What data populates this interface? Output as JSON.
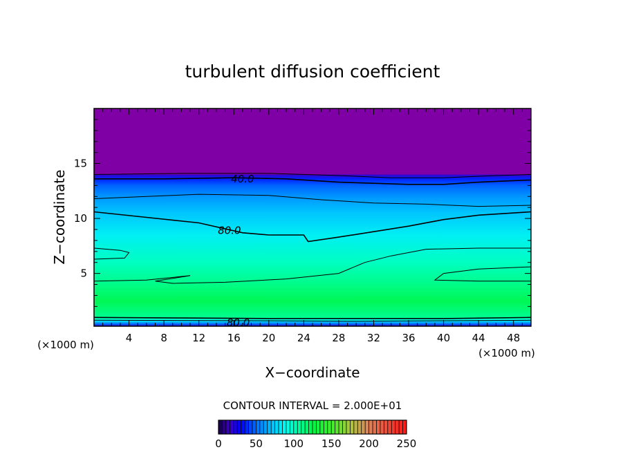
{
  "chart_data": {
    "type": "contour",
    "title": "turbulent diffusion coefficient",
    "xlabel": "X−coordinate",
    "ylabel": "Z−coordinate",
    "x_unit_left": "(×1000 m)",
    "x_unit_right": "(×1000 m)",
    "xlim": [
      0,
      50
    ],
    "ylim": [
      0.2,
      20
    ],
    "x_ticks": [
      4,
      8,
      12,
      16,
      20,
      24,
      28,
      32,
      36,
      40,
      44,
      48
    ],
    "y_ticks": [
      5,
      10,
      15
    ],
    "contour_interval_text": "CONTOUR INTERVAL = 2.000E+01",
    "contour_interval": 20,
    "contour_labels": [
      {
        "text": "40.0",
        "x": 17.0,
        "y": 13.6
      },
      {
        "text": "80.0",
        "x": 15.5,
        "y": 8.9
      },
      {
        "text": "80.0",
        "x": 16.5,
        "y": 0.5
      }
    ],
    "colorbar": {
      "min": 0,
      "max": 250,
      "tick_values": [
        0,
        50,
        100,
        150,
        200,
        250
      ],
      "tick_labels": [
        "0",
        "50",
        "100",
        "150",
        "200",
        "250"
      ]
    },
    "fields": {
      "top_layer": {
        "z_from": 14,
        "z_to": 20,
        "value": "<0",
        "color": "#7f00a4"
      },
      "near_surface_value": 120
    },
    "contours": [
      {
        "level": 40,
        "points": [
          [
            0,
            13.6
          ],
          [
            8,
            13.6
          ],
          [
            16,
            13.7
          ],
          [
            22,
            13.6
          ],
          [
            28,
            13.3
          ],
          [
            32,
            13.2
          ],
          [
            36,
            13.1
          ],
          [
            40,
            13.1
          ],
          [
            44,
            13.3
          ],
          [
            50,
            13.5
          ]
        ]
      },
      {
        "level": 20,
        "points": [
          [
            0,
            14.0
          ],
          [
            10,
            14.1
          ],
          [
            20,
            14.1
          ],
          [
            28,
            13.9
          ],
          [
            34,
            13.7
          ],
          [
            40,
            13.7
          ],
          [
            46,
            13.9
          ],
          [
            50,
            14.0
          ]
        ]
      },
      {
        "level": 60,
        "points": [
          [
            0,
            11.8
          ],
          [
            6,
            12.0
          ],
          [
            12,
            12.2
          ],
          [
            20,
            12.1
          ],
          [
            26,
            11.7
          ],
          [
            32,
            11.4
          ],
          [
            38,
            11.3
          ],
          [
            44,
            11.1
          ],
          [
            50,
            11.2
          ]
        ]
      },
      {
        "level": 80,
        "points": [
          [
            0,
            10.6
          ],
          [
            6,
            10.1
          ],
          [
            12,
            9.6
          ],
          [
            17,
            8.7
          ],
          [
            20,
            8.5
          ],
          [
            24,
            8.5
          ],
          [
            24.5,
            7.9
          ],
          [
            28,
            8.3
          ],
          [
            32,
            8.8
          ],
          [
            36,
            9.3
          ],
          [
            40,
            9.9
          ],
          [
            44,
            10.3
          ],
          [
            50,
            10.6
          ]
        ]
      },
      {
        "level": 100,
        "points": [
          [
            0,
            7.3
          ],
          [
            3,
            7.1
          ],
          [
            4,
            6.9
          ],
          [
            3.5,
            6.4
          ],
          [
            0,
            6.3
          ]
        ]
      },
      {
        "level": 100,
        "points": [
          [
            0,
            4.3
          ],
          [
            6,
            4.4
          ],
          [
            11,
            4.8
          ],
          [
            7,
            4.3
          ],
          [
            9,
            4.1
          ],
          [
            15,
            4.2
          ],
          [
            22,
            4.5
          ],
          [
            28,
            5.0
          ],
          [
            31,
            6.0
          ],
          [
            34,
            6.6
          ],
          [
            38,
            7.2
          ],
          [
            44,
            7.3
          ],
          [
            50,
            7.3
          ]
        ]
      },
      {
        "level": 100,
        "points": [
          [
            50,
            5.6
          ],
          [
            44,
            5.4
          ],
          [
            40,
            5.0
          ],
          [
            39,
            4.4
          ],
          [
            44,
            4.3
          ],
          [
            50,
            4.3
          ]
        ]
      },
      {
        "level": 80,
        "points": [
          [
            0,
            1.0
          ],
          [
            10,
            0.95
          ],
          [
            20,
            0.9
          ],
          [
            30,
            0.9
          ],
          [
            40,
            0.9
          ],
          [
            50,
            1.0
          ]
        ]
      },
      {
        "level": 60,
        "points": [
          [
            0,
            0.75
          ],
          [
            20,
            0.7
          ],
          [
            30,
            0.65
          ],
          [
            40,
            0.7
          ],
          [
            50,
            0.75
          ]
        ]
      }
    ],
    "vertical_profile": [
      {
        "z": 0.2,
        "value": 20
      },
      {
        "z": 0.45,
        "value": 55
      },
      {
        "z": 0.75,
        "value": 90
      },
      {
        "z": 1.0,
        "value": 110
      },
      {
        "z": 2.5,
        "value": 122
      },
      {
        "z": 4.0,
        "value": 112
      },
      {
        "z": 6.0,
        "value": 100
      },
      {
        "z": 8.5,
        "value": 85
      },
      {
        "z": 10.5,
        "value": 72
      },
      {
        "z": 12.0,
        "value": 60
      },
      {
        "z": 13.0,
        "value": 48
      },
      {
        "z": 13.6,
        "value": 36
      },
      {
        "z": 14.0,
        "value": 15
      },
      {
        "z": 14.2,
        "value": -10
      }
    ],
    "grid": false,
    "colors": {
      "frame": "#000000",
      "top_layer": "#7f00a4"
    }
  }
}
